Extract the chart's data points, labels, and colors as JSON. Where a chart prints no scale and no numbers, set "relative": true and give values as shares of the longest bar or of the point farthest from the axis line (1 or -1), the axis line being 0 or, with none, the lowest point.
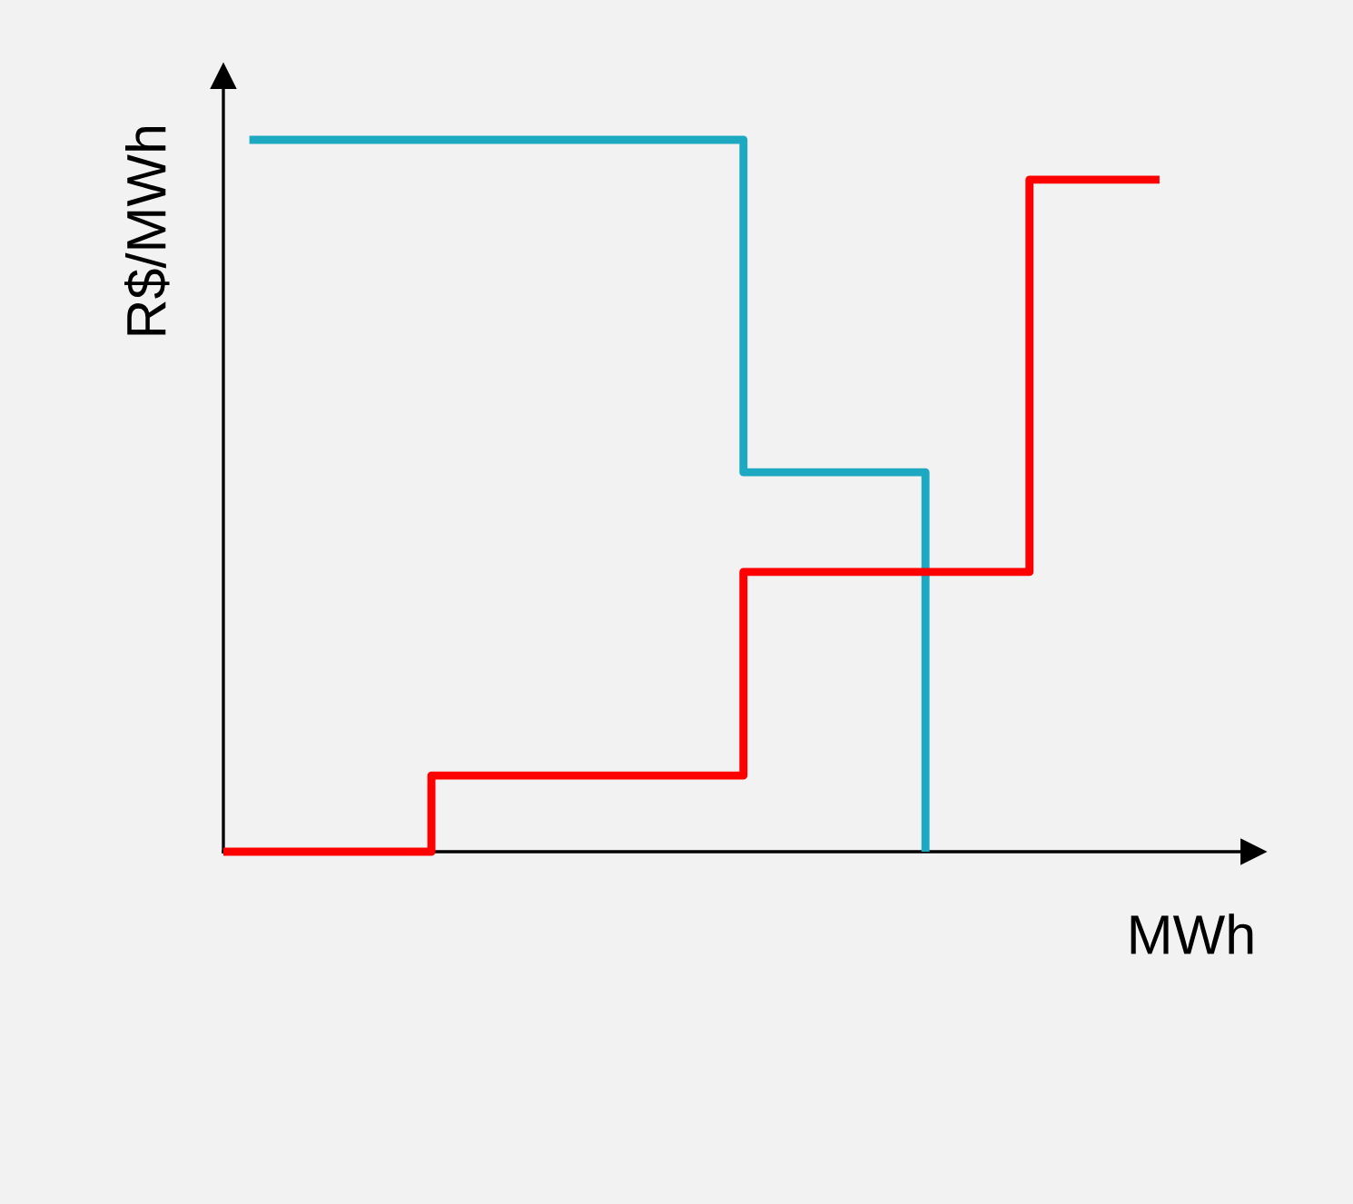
{
  "chart_data": {
    "type": "step",
    "relative": true,
    "xlabel": "MWh",
    "ylabel": "R$/MWh",
    "legend": false,
    "categories": [
      null,
      null,
      null,
      null,
      null,
      null,
      null,
      null,
      null,
      null,
      null,
      null,
      null,
      null,
      null,
      null,
      null,
      null,
      null,
      null,
      null,
      null,
      null,
      null,
      null,
      null,
      null,
      null,
      null,
      null,
      null,
      null,
      null,
      null,
      null,
      null,
      null
    ],
    "series": [
      {
        "color": "#1ea9c3",
        "values": [
          null,
          1,
          1,
          1,
          1,
          1,
          1,
          1,
          1,
          1,
          1,
          1,
          1,
          1,
          1,
          1,
          1,
          1,
          1,
          1,
          0.533,
          0.533,
          0.533,
          0.533,
          0.533,
          0.533,
          0.533,
          0,
          null,
          null,
          null,
          null,
          null,
          null,
          null,
          null,
          null
        ]
      },
      {
        "color": "#ff0000",
        "values": [
          0,
          0,
          0,
          0,
          0,
          0,
          0,
          0,
          0.107,
          0.107,
          0.107,
          0.107,
          0.107,
          0.107,
          0.107,
          0.107,
          0.107,
          0.107,
          0.107,
          0.107,
          0.393,
          0.393,
          0.393,
          0.393,
          0.393,
          0.393,
          0.393,
          0.393,
          0.393,
          0.393,
          0.393,
          0.944,
          0.944,
          0.944,
          0.944,
          0.944,
          0.944
        ]
      }
    ]
  }
}
